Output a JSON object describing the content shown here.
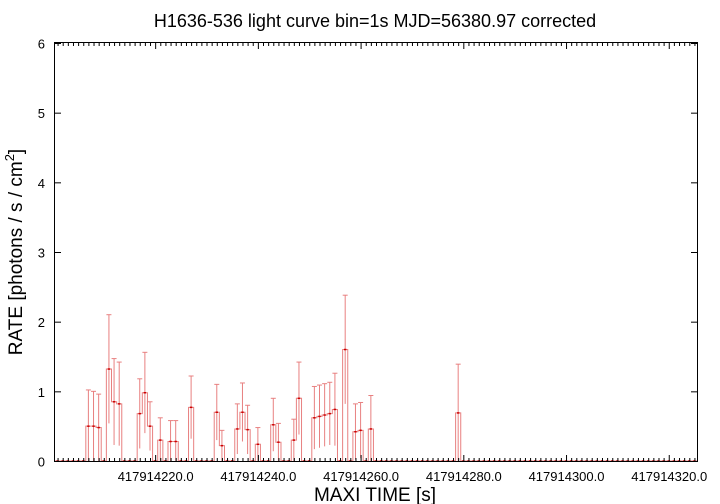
{
  "chart_data": {
    "type": "line",
    "title": "H1636-536 light curve bin=1s MJD=56380.97 corrected",
    "xlabel": "MAXI TIME [s]",
    "ylabel_main": "RATE [photons / s / cm",
    "ylabel_sup": "2",
    "ylabel_end": "]",
    "xlim": [
      417914200.5,
      417914325.5
    ],
    "ylim": [
      0,
      6
    ],
    "x_ticks": [
      417914220,
      417914240,
      417914260,
      417914280,
      417914300,
      417914320
    ],
    "x_tick_labels": [
      "417914220.0",
      "417914240.0",
      "417914260.0",
      "417914280.0",
      "417914300.0",
      "417914320.0"
    ],
    "y_ticks": [
      0,
      1,
      2,
      3,
      4,
      5,
      6
    ],
    "y_tick_labels": [
      "0",
      "1",
      "2",
      "3",
      "4",
      "5",
      "6"
    ],
    "grid": false,
    "series_color": "#cc0000",
    "errorbar_color": "#e88080",
    "series": [
      {
        "name": "",
        "x": [
          417914201,
          417914202,
          417914203,
          417914204,
          417914205,
          417914206,
          417914207,
          417914208,
          417914209,
          417914210,
          417914211,
          417914212,
          417914213,
          417914214,
          417914215,
          417914216,
          417914217,
          417914218,
          417914219,
          417914220,
          417914221,
          417914222,
          417914223,
          417914224,
          417914225,
          417914226,
          417914227,
          417914228,
          417914229,
          417914230,
          417914231,
          417914232,
          417914233,
          417914234,
          417914235,
          417914236,
          417914237,
          417914238,
          417914239,
          417914240,
          417914241,
          417914242,
          417914243,
          417914244,
          417914245,
          417914246,
          417914247,
          417914248,
          417914249,
          417914250,
          417914251,
          417914252,
          417914253,
          417914254,
          417914255,
          417914256,
          417914257,
          417914258,
          417914259,
          417914260,
          417914261,
          417914262,
          417914263,
          417914264,
          417914265,
          417914266,
          417914267,
          417914268,
          417914269,
          417914270,
          417914271,
          417914272,
          417914273,
          417914274,
          417914275,
          417914276,
          417914277,
          417914278,
          417914279,
          417914280,
          417914281,
          417914282,
          417914283,
          417914284,
          417914285,
          417914286,
          417914287,
          417914288,
          417914289,
          417914290,
          417914291,
          417914292,
          417914293,
          417914294,
          417914295,
          417914296,
          417914297,
          417914298,
          417914299,
          417914300,
          417914301,
          417914302,
          417914303,
          417914304,
          417914305,
          417914306,
          417914307,
          417914308,
          417914309,
          417914310,
          417914311,
          417914312,
          417914313,
          417914314,
          417914315,
          417914316,
          417914317,
          417914318,
          417914319,
          417914320,
          417914321,
          417914322,
          417914323,
          417914324,
          417914325
        ],
        "y": [
          0,
          0,
          0,
          0,
          0,
          0,
          0.5,
          0.5,
          0.48,
          0,
          1.32,
          0.85,
          0.82,
          0,
          0,
          0,
          0.68,
          0.98,
          0.5,
          0,
          0.3,
          0,
          0.28,
          0.28,
          0,
          0,
          0.77,
          0,
          0,
          0,
          0,
          0.7,
          0.22,
          0,
          0,
          0.46,
          0.7,
          0.45,
          0,
          0.24,
          0,
          0,
          0.52,
          0.27,
          0,
          0,
          0.3,
          0.9,
          0,
          0,
          0.62,
          0.64,
          0.66,
          0.68,
          0.74,
          0,
          1.6,
          0,
          0.42,
          0.44,
          0,
          0.46,
          0,
          0,
          0,
          0,
          0,
          0,
          0,
          0,
          0,
          0,
          0,
          0,
          0,
          0,
          0,
          0,
          0.69,
          0,
          0,
          0,
          0,
          0,
          0,
          0,
          0,
          0,
          0,
          0,
          0,
          0,
          0,
          0,
          0,
          0,
          0,
          0,
          0,
          0,
          0,
          0,
          0,
          0,
          0,
          0,
          0,
          0,
          0,
          0,
          0,
          0,
          0,
          0,
          0,
          0,
          0,
          0,
          0,
          0,
          0,
          0,
          0,
          0,
          0
        ],
        "error": [
          0,
          0,
          0,
          0,
          0,
          0,
          0.52,
          0.5,
          0.48,
          0,
          0.78,
          0.62,
          0.6,
          0,
          0,
          0,
          0.5,
          0.58,
          0.35,
          0,
          0.32,
          0,
          0.3,
          0.3,
          0,
          0,
          0.45,
          0,
          0,
          0,
          0,
          0.4,
          0.22,
          0,
          0,
          0.36,
          0.42,
          0.35,
          0,
          0.24,
          0,
          0,
          0.38,
          0.27,
          0,
          0,
          0.3,
          0.52,
          0,
          0,
          0.45,
          0.45,
          0.45,
          0.45,
          0.52,
          0,
          0.78,
          0,
          0.4,
          0.4,
          0,
          0.48,
          0,
          0,
          0,
          0,
          0,
          0,
          0,
          0,
          0,
          0,
          0,
          0,
          0,
          0,
          0,
          0,
          0.7,
          0,
          0,
          0,
          0,
          0,
          0,
          0,
          0,
          0,
          0,
          0,
          0,
          0,
          0,
          0,
          0,
          0,
          0,
          0,
          0,
          0,
          0,
          0,
          0,
          0,
          0,
          0,
          0,
          0,
          0,
          0,
          0,
          0,
          0,
          0,
          0,
          0,
          0,
          0,
          0,
          0,
          0,
          0,
          0,
          0,
          0
        ]
      }
    ]
  }
}
